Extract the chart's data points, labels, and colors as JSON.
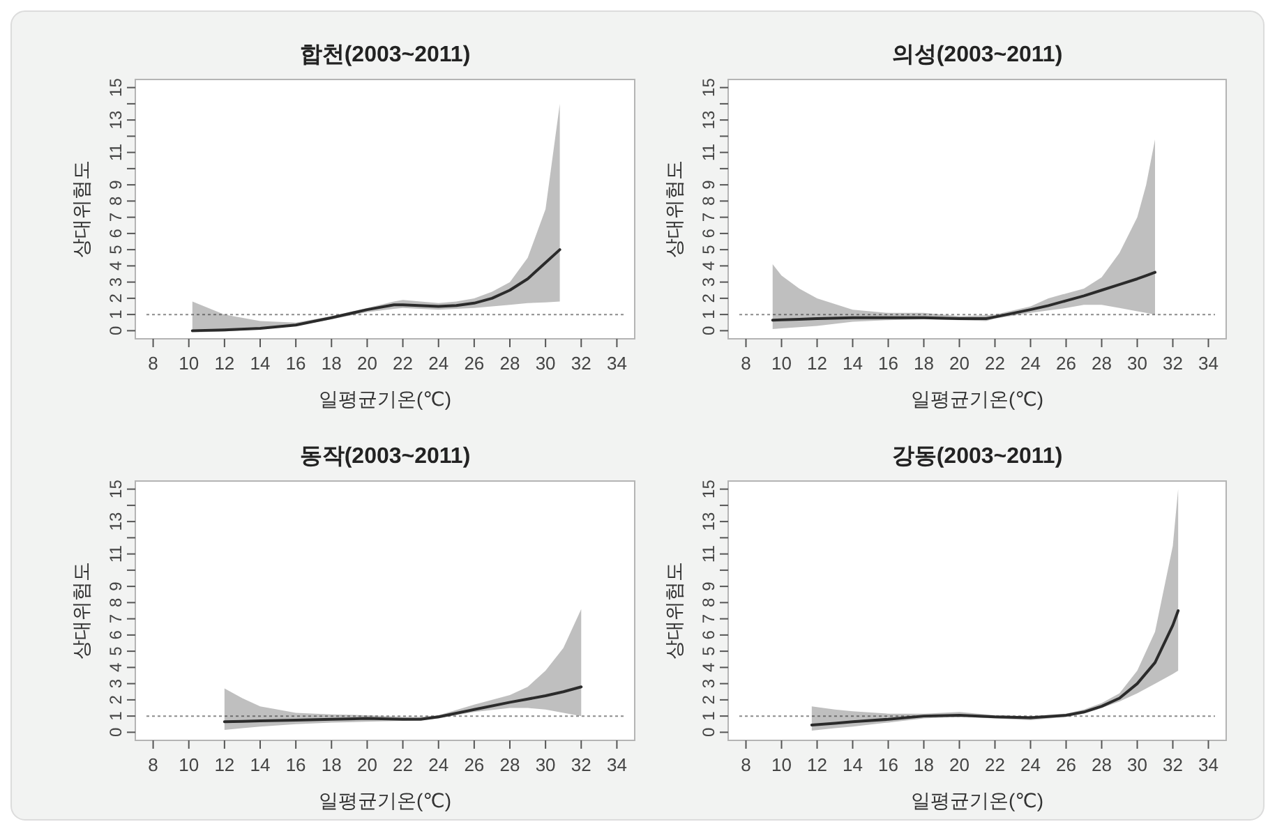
{
  "chart_data": [
    {
      "type": "line",
      "title": "합천(2003~2011)",
      "xlabel": "일평균기온(℃)",
      "ylabel": "상대위험도",
      "grid": false,
      "xlim": [
        7,
        35
      ],
      "xticks": [
        8,
        10,
        12,
        14,
        16,
        18,
        20,
        22,
        24,
        26,
        28,
        30,
        32,
        34
      ],
      "ylim": [
        -0.5,
        15.5
      ],
      "yticks": [
        0,
        1,
        2,
        3,
        4,
        5,
        6,
        7,
        8,
        9,
        {
          "value": 10,
          "label": null
        },
        11,
        {
          "value": 12,
          "label": null
        },
        13,
        {
          "value": 14,
          "label": null
        },
        15
      ],
      "ref_lines": [
        {
          "axis": "y",
          "value": 1,
          "line_style": "dotted",
          "color": "#8c8c8c"
        }
      ],
      "series": [
        {
          "color": "#2b2b2b",
          "x": [
            10.2,
            12,
            14,
            16,
            18,
            20,
            21.5,
            22,
            24,
            25,
            26,
            27,
            28,
            29,
            30,
            30.8
          ],
          "values": [
            0.0,
            0.05,
            0.15,
            0.35,
            0.8,
            1.3,
            1.6,
            1.6,
            1.5,
            1.55,
            1.7,
            2.0,
            2.5,
            3.2,
            4.2,
            5.0
          ],
          "lower": [
            -0.1,
            -0.05,
            0.1,
            0.3,
            0.7,
            1.15,
            1.35,
            1.4,
            1.3,
            1.35,
            1.4,
            1.5,
            1.6,
            1.7,
            1.75,
            1.8
          ],
          "upper": [
            1.8,
            1.0,
            0.6,
            0.5,
            0.9,
            1.4,
            1.8,
            1.9,
            1.7,
            1.8,
            2.0,
            2.4,
            3.0,
            4.5,
            7.5,
            14
          ]
        }
      ]
    },
    {
      "type": "line",
      "title": "의성(2003~2011)",
      "xlabel": "일평균기온(℃)",
      "ylabel": "상대위험도",
      "grid": false,
      "xlim": [
        7,
        35
      ],
      "xticks": [
        8,
        10,
        12,
        14,
        16,
        18,
        20,
        22,
        24,
        26,
        28,
        30,
        32,
        34
      ],
      "ylim": [
        -0.5,
        15.5
      ],
      "yticks": [
        0,
        1,
        2,
        3,
        4,
        5,
        6,
        7,
        8,
        9,
        {
          "value": 10,
          "label": null
        },
        11,
        {
          "value": 12,
          "label": null
        },
        13,
        {
          "value": 14,
          "label": null
        },
        15
      ],
      "ref_lines": [
        {
          "axis": "y",
          "value": 1,
          "line_style": "dotted",
          "color": "#8c8c8c"
        }
      ],
      "series": [
        {
          "color": "#2b2b2b",
          "x": [
            9.5,
            10,
            11,
            12,
            14,
            16,
            18,
            20,
            21.5,
            22,
            24,
            25,
            26,
            27,
            28,
            29,
            30,
            30.5,
            31
          ],
          "values": [
            0.65,
            0.67,
            0.7,
            0.75,
            0.8,
            0.8,
            0.8,
            0.75,
            0.75,
            0.85,
            1.3,
            1.55,
            1.85,
            2.15,
            2.5,
            2.85,
            3.2,
            3.4,
            3.6
          ],
          "lower": [
            0.1,
            0.15,
            0.22,
            0.3,
            0.55,
            0.65,
            0.7,
            0.65,
            0.6,
            0.75,
            1.1,
            1.25,
            1.4,
            1.6,
            1.6,
            1.4,
            1.2,
            1.1,
            1.0
          ],
          "upper": [
            4.1,
            3.4,
            2.6,
            2.0,
            1.3,
            1.1,
            1.1,
            0.9,
            0.95,
            1.0,
            1.5,
            2.0,
            2.3,
            2.6,
            3.3,
            4.8,
            7.0,
            9.0,
            11.8
          ]
        }
      ]
    },
    {
      "type": "line",
      "title": "동작(2003~2011)",
      "xlabel": "일평균기온(℃)",
      "ylabel": "상대위험도",
      "grid": false,
      "xlim": [
        7,
        35
      ],
      "xticks": [
        8,
        10,
        12,
        14,
        16,
        18,
        20,
        22,
        24,
        26,
        28,
        30,
        32,
        34
      ],
      "ylim": [
        -0.5,
        15.5
      ],
      "yticks": [
        0,
        1,
        2,
        3,
        4,
        5,
        6,
        7,
        8,
        9,
        {
          "value": 10,
          "label": null
        },
        11,
        {
          "value": 12,
          "label": null
        },
        13,
        {
          "value": 14,
          "label": null
        },
        15
      ],
      "ref_lines": [
        {
          "axis": "y",
          "value": 1,
          "line_style": "dotted",
          "color": "#8c8c8c"
        }
      ],
      "series": [
        {
          "color": "#2b2b2b",
          "x": [
            12,
            13,
            14,
            16,
            18,
            20,
            22,
            23,
            24,
            26,
            28,
            29,
            30,
            31,
            32
          ],
          "values": [
            0.65,
            0.67,
            0.7,
            0.75,
            0.8,
            0.85,
            0.8,
            0.8,
            0.95,
            1.4,
            1.85,
            2.05,
            2.25,
            2.5,
            2.8
          ],
          "lower": [
            0.15,
            0.25,
            0.35,
            0.5,
            0.6,
            0.65,
            0.7,
            0.75,
            0.85,
            1.25,
            1.5,
            1.5,
            1.4,
            1.2,
            1.0
          ],
          "upper": [
            2.7,
            2.1,
            1.6,
            1.2,
            1.1,
            1.05,
            0.95,
            0.95,
            1.05,
            1.7,
            2.3,
            2.8,
            3.8,
            5.2,
            7.6
          ]
        }
      ]
    },
    {
      "type": "line",
      "title": "강동(2003~2011)",
      "xlabel": "일평균기온(℃)",
      "ylabel": "상대위험도",
      "grid": false,
      "xlim": [
        7,
        35
      ],
      "xticks": [
        8,
        10,
        12,
        14,
        16,
        18,
        20,
        22,
        24,
        26,
        28,
        30,
        32,
        34
      ],
      "ylim": [
        -0.5,
        15.5
      ],
      "yticks": [
        0,
        1,
        2,
        3,
        4,
        5,
        6,
        7,
        8,
        9,
        {
          "value": 10,
          "label": null
        },
        11,
        {
          "value": 12,
          "label": null
        },
        13,
        {
          "value": 14,
          "label": null
        },
        15
      ],
      "ref_lines": [
        {
          "axis": "y",
          "value": 1,
          "line_style": "dotted",
          "color": "#8c8c8c"
        }
      ],
      "series": [
        {
          "color": "#2b2b2b",
          "x": [
            11.7,
            13,
            14,
            16,
            18,
            20,
            22,
            24,
            26,
            27,
            28,
            29,
            30,
            31,
            32,
            32.3
          ],
          "values": [
            0.45,
            0.55,
            0.65,
            0.8,
            1.0,
            1.05,
            0.95,
            0.9,
            1.05,
            1.25,
            1.6,
            2.1,
            3.0,
            4.3,
            6.6,
            7.5
          ],
          "lower": [
            0.1,
            0.25,
            0.35,
            0.6,
            0.85,
            0.95,
            0.85,
            0.75,
            0.95,
            1.15,
            1.5,
            1.9,
            2.4,
            3.0,
            3.6,
            3.8
          ],
          "upper": [
            1.6,
            1.4,
            1.3,
            1.15,
            1.15,
            1.25,
            1.05,
            1.0,
            1.15,
            1.4,
            1.8,
            2.4,
            3.8,
            6.2,
            11.5,
            15
          ]
        }
      ]
    }
  ]
}
